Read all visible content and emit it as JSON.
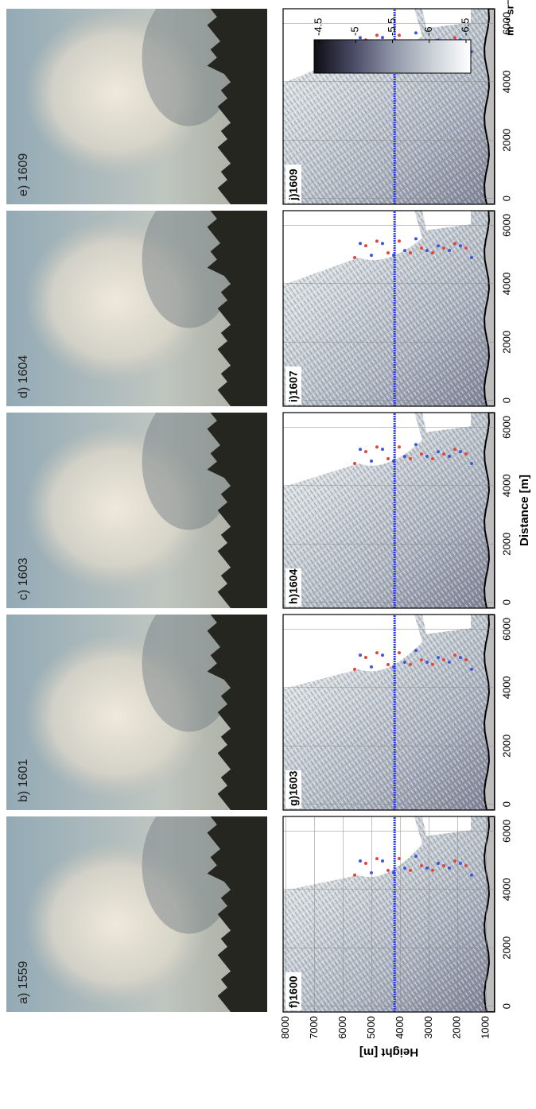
{
  "photos": [
    {
      "label": "a) 1559"
    },
    {
      "label": "b) 1601"
    },
    {
      "label": "c) 1603"
    },
    {
      "label": "d) 1604"
    },
    {
      "label": "e) 1609"
    }
  ],
  "colorbar": {
    "label": "m⁻¹ sr⁻¹",
    "lim": [
      -6.5,
      -4.5
    ],
    "ticks": [
      -4.5,
      -5,
      -5.5,
      -6,
      -6.5
    ]
  },
  "chart_data": [
    {
      "type": "lidar",
      "label": "f)1600",
      "ylabel": "Height [m]",
      "xlim": [
        -200,
        6500
      ],
      "xticks": [
        0,
        2000,
        4000,
        6000
      ],
      "ylim": [
        700,
        8100
      ],
      "yticks": [
        1000,
        2000,
        3000,
        4000,
        5000,
        6000,
        7000,
        8000
      ],
      "line_height": 4200
    },
    {
      "type": "lidar",
      "label": "g)1603",
      "xlim": [
        -200,
        6500
      ],
      "xticks": [
        0,
        2000,
        4000,
        6000
      ],
      "ylim": [
        700,
        8100
      ],
      "line_height": 4200
    },
    {
      "type": "lidar",
      "label": "h)1604",
      "xlabel": "Distance [m]",
      "xlim": [
        -200,
        6500
      ],
      "xticks": [
        0,
        2000,
        4000,
        6000
      ],
      "ylim": [
        700,
        8100
      ],
      "line_height": 4200
    },
    {
      "type": "lidar",
      "label": "i)1607",
      "xlim": [
        -200,
        6500
      ],
      "xticks": [
        0,
        2000,
        4000,
        6000
      ],
      "ylim": [
        700,
        8100
      ],
      "line_height": 4200
    },
    {
      "type": "lidar",
      "label": "j)1609",
      "xlim": [
        -200,
        6500
      ],
      "xticks": [
        0,
        2000,
        4000,
        6000
      ],
      "ylim": [
        700,
        8100
      ],
      "line_height": 4200
    }
  ]
}
